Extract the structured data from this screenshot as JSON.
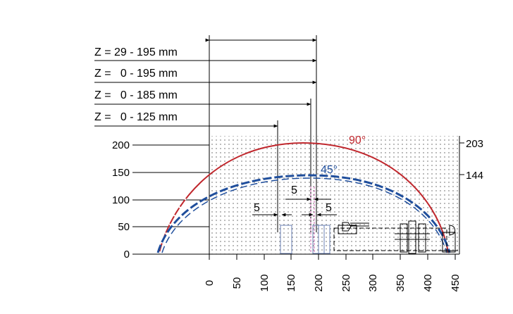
{
  "z_ranges": [
    {
      "label": "Z = 29 - 195 mm",
      "reach_mm": 195
    },
    {
      "label": "Z =   0 - 195 mm",
      "reach_mm": 195
    },
    {
      "label": "Z =   0 - 185 mm",
      "reach_mm": 185
    },
    {
      "label": "Z =   0 - 125 mm",
      "reach_mm": 125
    }
  ],
  "axes": {
    "x_ticks": [
      "0",
      "50",
      "100",
      "150",
      "200",
      "250",
      "300",
      "350",
      "400",
      "450"
    ],
    "y_ticks": [
      "0",
      "50",
      "100",
      "150",
      "200"
    ],
    "right_labels": [
      "203",
      "144"
    ]
  },
  "curves": [
    {
      "label": "90°",
      "color": "#c0272d",
      "peak_mm": 203
    },
    {
      "label": "45°",
      "color": "#1f4e9c",
      "peak_mm": 144
    }
  ],
  "dims": {
    "five": "5"
  }
}
